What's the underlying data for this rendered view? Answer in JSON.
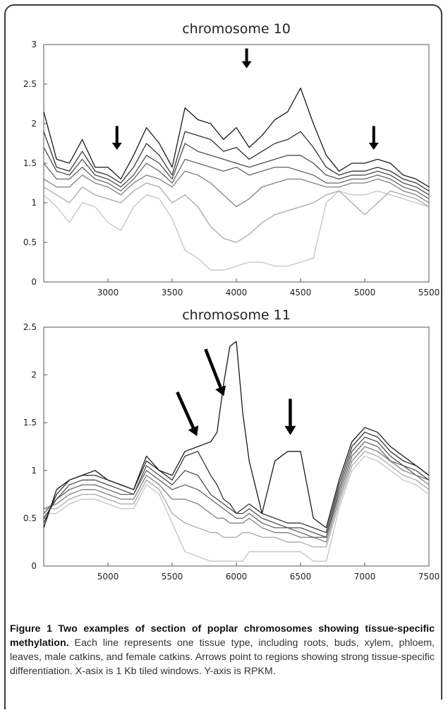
{
  "chart_data": [
    {
      "type": "line",
      "title": "chromosome 10",
      "xlabel": "",
      "ylabel": "",
      "xlim": [
        2500,
        5500
      ],
      "ylim": [
        0,
        3
      ],
      "x_ticks": [
        3000,
        3500,
        4000,
        4500,
        5000,
        5500
      ],
      "y_ticks": [
        0,
        0.5,
        1,
        1.5,
        2,
        2.5,
        3
      ],
      "grid": false,
      "legend": "none",
      "line_colors": [
        "#1a1a1a",
        "#333333",
        "#4d4d4d",
        "#666666",
        "#808080",
        "#a8a8a8",
        "#c4c4c4"
      ],
      "arrows": [
        {
          "x": 3070,
          "y_top": 1.97,
          "y_tip": 1.67
        },
        {
          "x": 4080,
          "y_top": 2.95,
          "y_tip": 2.7
        },
        {
          "x": 5070,
          "y_top": 1.97,
          "y_tip": 1.67
        }
      ],
      "series": [
        {
          "x": [
            2500,
            2600,
            2700,
            2800,
            2900,
            3000,
            3100,
            3200,
            3300,
            3400,
            3500,
            3600,
            3700,
            3800,
            3900,
            4000,
            4100,
            4200,
            4300,
            4400,
            4500,
            4600,
            4700,
            4800,
            4900,
            5000,
            5100,
            5200,
            5300,
            5400,
            5500
          ],
          "values": [
            2.15,
            1.55,
            1.5,
            1.8,
            1.45,
            1.45,
            1.3,
            1.6,
            1.95,
            1.75,
            1.45,
            2.2,
            2.05,
            2.0,
            1.8,
            1.95,
            1.7,
            1.85,
            2.05,
            2.15,
            2.45,
            2.0,
            1.6,
            1.4,
            1.5,
            1.5,
            1.55,
            1.5,
            1.35,
            1.3,
            1.2
          ]
        },
        {
          "x": [
            2500,
            2600,
            2700,
            2800,
            2900,
            3000,
            3100,
            3200,
            3300,
            3400,
            3500,
            3600,
            3700,
            3800,
            3900,
            4000,
            4100,
            4200,
            4300,
            4400,
            4500,
            4600,
            4700,
            4800,
            4900,
            5000,
            5100,
            5200,
            5300,
            5400,
            5500
          ],
          "values": [
            1.9,
            1.45,
            1.4,
            1.65,
            1.4,
            1.35,
            1.25,
            1.45,
            1.75,
            1.6,
            1.35,
            1.9,
            1.85,
            1.8,
            1.65,
            1.7,
            1.55,
            1.65,
            1.75,
            1.8,
            1.9,
            1.7,
            1.45,
            1.35,
            1.4,
            1.4,
            1.45,
            1.4,
            1.3,
            1.25,
            1.15
          ]
        },
        {
          "x": [
            2500,
            2600,
            2700,
            2800,
            2900,
            3000,
            3100,
            3200,
            3300,
            3400,
            3500,
            3600,
            3700,
            3800,
            3900,
            4000,
            4100,
            4200,
            4300,
            4400,
            4500,
            4600,
            4700,
            4800,
            4900,
            5000,
            5100,
            5200,
            5300,
            5400,
            5500
          ],
          "values": [
            1.7,
            1.4,
            1.35,
            1.55,
            1.35,
            1.3,
            1.2,
            1.35,
            1.6,
            1.5,
            1.3,
            1.75,
            1.65,
            1.6,
            1.55,
            1.5,
            1.45,
            1.5,
            1.55,
            1.6,
            1.6,
            1.5,
            1.35,
            1.3,
            1.35,
            1.35,
            1.4,
            1.35,
            1.25,
            1.2,
            1.1
          ]
        },
        {
          "x": [
            2500,
            2600,
            2700,
            2800,
            2900,
            3000,
            3100,
            3200,
            3300,
            3400,
            3500,
            3600,
            3700,
            3800,
            3900,
            4000,
            4100,
            4200,
            4300,
            4400,
            4500,
            4600,
            4700,
            4800,
            4900,
            5000,
            5100,
            5200,
            5300,
            5400,
            5500
          ],
          "values": [
            1.5,
            1.3,
            1.3,
            1.45,
            1.3,
            1.25,
            1.15,
            1.3,
            1.5,
            1.4,
            1.25,
            1.55,
            1.5,
            1.45,
            1.4,
            1.45,
            1.35,
            1.4,
            1.45,
            1.45,
            1.4,
            1.35,
            1.25,
            1.25,
            1.3,
            1.3,
            1.35,
            1.3,
            1.2,
            1.15,
            1.05
          ]
        },
        {
          "x": [
            2500,
            2600,
            2700,
            2800,
            2900,
            3000,
            3100,
            3200,
            3300,
            3400,
            3500,
            3600,
            3700,
            3800,
            3900,
            4000,
            4100,
            4200,
            4300,
            4400,
            4500,
            4600,
            4700,
            4800,
            4900,
            5000,
            5100,
            5200,
            5300,
            5400,
            5500
          ],
          "values": [
            1.3,
            1.2,
            1.2,
            1.35,
            1.25,
            1.2,
            1.1,
            1.25,
            1.35,
            1.3,
            1.2,
            1.4,
            1.35,
            1.25,
            1.1,
            0.95,
            1.05,
            1.2,
            1.25,
            1.3,
            1.3,
            1.25,
            1.2,
            1.2,
            1.25,
            1.25,
            1.3,
            1.25,
            1.15,
            1.1,
            1.0
          ]
        },
        {
          "x": [
            2500,
            2600,
            2700,
            2800,
            2900,
            3000,
            3100,
            3200,
            3300,
            3400,
            3500,
            3600,
            3700,
            3800,
            3900,
            4000,
            4100,
            4200,
            4300,
            4400,
            4500,
            4600,
            4700,
            4800,
            4900,
            5000,
            5100,
            5200,
            5300,
            5400,
            5500
          ],
          "values": [
            1.2,
            1.1,
            1.0,
            1.2,
            1.1,
            1.05,
            1.0,
            1.15,
            1.25,
            1.2,
            1.0,
            1.1,
            0.95,
            0.7,
            0.55,
            0.5,
            0.6,
            0.75,
            0.85,
            0.9,
            0.95,
            1.0,
            1.1,
            1.15,
            1.0,
            0.85,
            1.0,
            1.15,
            1.1,
            1.05,
            0.95
          ]
        },
        {
          "x": [
            2500,
            2600,
            2700,
            2800,
            2900,
            3000,
            3100,
            3200,
            3300,
            3400,
            3500,
            3600,
            3700,
            3800,
            3900,
            4000,
            4100,
            4200,
            4300,
            4400,
            4500,
            4600,
            4700,
            4800,
            4900,
            5000,
            5100,
            5200,
            5300,
            5400,
            5500
          ],
          "values": [
            1.1,
            0.95,
            0.75,
            1.0,
            0.95,
            0.75,
            0.65,
            0.95,
            1.1,
            1.05,
            0.8,
            0.4,
            0.3,
            0.15,
            0.15,
            0.2,
            0.25,
            0.25,
            0.2,
            0.2,
            0.25,
            0.3,
            1.0,
            1.15,
            1.1,
            1.1,
            1.15,
            1.1,
            1.05,
            1.0,
            0.95
          ]
        }
      ]
    },
    {
      "type": "line",
      "title": "chromosome 11",
      "xlabel": "",
      "ylabel": "",
      "xlim": [
        4500,
        7500
      ],
      "ylim": [
        0,
        2.5
      ],
      "x_ticks": [
        5000,
        5500,
        6000,
        6500,
        7000,
        7500
      ],
      "y_ticks": [
        0,
        0.5,
        1,
        1.5,
        2,
        2.5
      ],
      "grid": false,
      "legend": "none",
      "line_colors": [
        "#1a1a1a",
        "#333333",
        "#4d4d4d",
        "#666666",
        "#808080",
        "#a8a8a8",
        "#c4c4c4"
      ],
      "arrows": [
        {
          "x": 5540,
          "y_top": 1.82,
          "y_tip": 1.36
        },
        {
          "x": 5760,
          "y_top": 2.27,
          "y_tip": 1.78
        },
        {
          "x": 6420,
          "y_top": 1.75,
          "y_tip": 1.37
        }
      ],
      "series": [
        {
          "x": [
            4500,
            4600,
            4700,
            4800,
            4900,
            5000,
            5100,
            5200,
            5300,
            5400,
            5500,
            5600,
            5700,
            5800,
            5850,
            5900,
            5950,
            6000,
            6050,
            6100,
            6200,
            6300,
            6400,
            6500,
            6600,
            6700,
            6800,
            6900,
            7000,
            7100,
            7200,
            7300,
            7400,
            7500
          ],
          "values": [
            0.4,
            0.8,
            0.9,
            0.95,
            1.0,
            0.9,
            0.85,
            0.8,
            1.15,
            1.0,
            0.95,
            1.2,
            1.25,
            1.3,
            1.4,
            1.9,
            2.3,
            2.35,
            1.6,
            1.1,
            0.55,
            1.1,
            1.2,
            1.2,
            0.5,
            0.4,
            0.9,
            1.3,
            1.45,
            1.4,
            1.25,
            1.15,
            1.05,
            0.95
          ]
        },
        {
          "x": [
            4500,
            4600,
            4700,
            4800,
            4900,
            5000,
            5100,
            5200,
            5300,
            5400,
            5500,
            5600,
            5700,
            5800,
            5850,
            5900,
            5950,
            6000,
            6050,
            6100,
            6200,
            6300,
            6400,
            6500,
            6600,
            6700,
            6800,
            6900,
            7000,
            7100,
            7200,
            7300,
            7400,
            7500
          ],
          "values": [
            0.45,
            0.75,
            0.9,
            0.95,
            0.95,
            0.9,
            0.85,
            0.8,
            1.1,
            1.0,
            0.9,
            1.15,
            1.2,
            0.95,
            0.85,
            0.7,
            0.65,
            0.55,
            0.6,
            0.65,
            0.55,
            0.5,
            0.45,
            0.45,
            0.4,
            0.35,
            0.85,
            1.25,
            1.4,
            1.35,
            1.2,
            1.1,
            1.05,
            0.95
          ]
        },
        {
          "x": [
            4500,
            4600,
            4700,
            4800,
            4900,
            5000,
            5100,
            5200,
            5300,
            5400,
            5500,
            5600,
            5700,
            5800,
            5850,
            5900,
            5950,
            6000,
            6050,
            6100,
            6200,
            6300,
            6400,
            6500,
            6600,
            6700,
            6800,
            6900,
            7000,
            7100,
            7200,
            7300,
            7400,
            7500
          ],
          "values": [
            0.5,
            0.7,
            0.85,
            0.9,
            0.9,
            0.85,
            0.8,
            0.75,
            1.05,
            0.95,
            0.85,
            1.0,
            0.95,
            0.75,
            0.7,
            0.65,
            0.6,
            0.55,
            0.55,
            0.6,
            0.5,
            0.45,
            0.4,
            0.4,
            0.35,
            0.3,
            0.8,
            1.2,
            1.35,
            1.3,
            1.15,
            1.05,
            1.0,
            0.9
          ]
        },
        {
          "x": [
            4500,
            4600,
            4700,
            4800,
            4900,
            5000,
            5100,
            5200,
            5300,
            5400,
            5500,
            5600,
            5700,
            5800,
            5850,
            5900,
            5950,
            6000,
            6050,
            6100,
            6200,
            6300,
            6400,
            6500,
            6600,
            6700,
            6800,
            6900,
            7000,
            7100,
            7200,
            7300,
            7400,
            7500
          ],
          "values": [
            0.55,
            0.7,
            0.8,
            0.85,
            0.85,
            0.8,
            0.75,
            0.75,
            1.0,
            0.9,
            0.8,
            0.85,
            0.8,
            0.7,
            0.65,
            0.6,
            0.55,
            0.5,
            0.5,
            0.55,
            0.45,
            0.4,
            0.4,
            0.35,
            0.3,
            0.3,
            0.75,
            1.15,
            1.3,
            1.25,
            1.1,
            1.05,
            0.95,
            0.9
          ]
        },
        {
          "x": [
            4500,
            4600,
            4700,
            4800,
            4900,
            5000,
            5100,
            5200,
            5300,
            5400,
            5500,
            5600,
            5700,
            5800,
            5850,
            5900,
            5950,
            6000,
            6050,
            6100,
            6200,
            6300,
            6400,
            6500,
            6600,
            6700,
            6800,
            6900,
            7000,
            7100,
            7200,
            7300,
            7400,
            7500
          ],
          "values": [
            0.6,
            0.65,
            0.75,
            0.8,
            0.8,
            0.75,
            0.7,
            0.7,
            0.95,
            0.85,
            0.7,
            0.7,
            0.65,
            0.55,
            0.5,
            0.5,
            0.45,
            0.45,
            0.45,
            0.5,
            0.4,
            0.35,
            0.35,
            0.3,
            0.3,
            0.25,
            0.7,
            1.1,
            1.25,
            1.2,
            1.1,
            1.0,
            0.95,
            0.85
          ]
        },
        {
          "x": [
            4500,
            4600,
            4700,
            4800,
            4900,
            5000,
            5100,
            5200,
            5300,
            5400,
            5500,
            5600,
            5700,
            5800,
            5850,
            5900,
            5950,
            6000,
            6050,
            6100,
            6200,
            6300,
            6400,
            6500,
            6600,
            6700,
            6800,
            6900,
            7000,
            7100,
            7200,
            7300,
            7400,
            7500
          ],
          "values": [
            0.6,
            0.6,
            0.7,
            0.75,
            0.75,
            0.7,
            0.65,
            0.65,
            0.9,
            0.8,
            0.55,
            0.45,
            0.4,
            0.35,
            0.35,
            0.3,
            0.3,
            0.3,
            0.35,
            0.35,
            0.3,
            0.3,
            0.25,
            0.25,
            0.2,
            0.2,
            0.65,
            1.05,
            1.2,
            1.15,
            1.05,
            0.95,
            0.9,
            0.8
          ]
        },
        {
          "x": [
            4500,
            4600,
            4700,
            4800,
            4900,
            5000,
            5100,
            5200,
            5300,
            5400,
            5500,
            5600,
            5700,
            5800,
            5850,
            5900,
            5950,
            6000,
            6050,
            6100,
            6200,
            6300,
            6400,
            6500,
            6600,
            6700,
            6800,
            6900,
            7000,
            7100,
            7200,
            7300,
            7400,
            7500
          ],
          "values": [
            0.55,
            0.55,
            0.65,
            0.7,
            0.7,
            0.65,
            0.6,
            0.6,
            0.85,
            0.75,
            0.45,
            0.15,
            0.1,
            0.05,
            0.05,
            0.05,
            0.05,
            0.05,
            0.05,
            0.15,
            0.15,
            0.15,
            0.15,
            0.15,
            0.05,
            0.05,
            0.6,
            1.0,
            1.15,
            1.1,
            1.0,
            0.9,
            0.85,
            0.75
          ]
        }
      ]
    }
  ],
  "caption": {
    "lead": "Figure 1 Two examples of section of poplar chromosomes showing tissue-specific methylation.",
    "body": " Each line represents one tissue type, including roots, buds, xylem, phloem, leaves, male catkins, and female catkins. Arrows point to regions showing strong tissue-specific differentiation. X-asix is 1 Kb tiled windows. Y-axis is RPKM."
  }
}
